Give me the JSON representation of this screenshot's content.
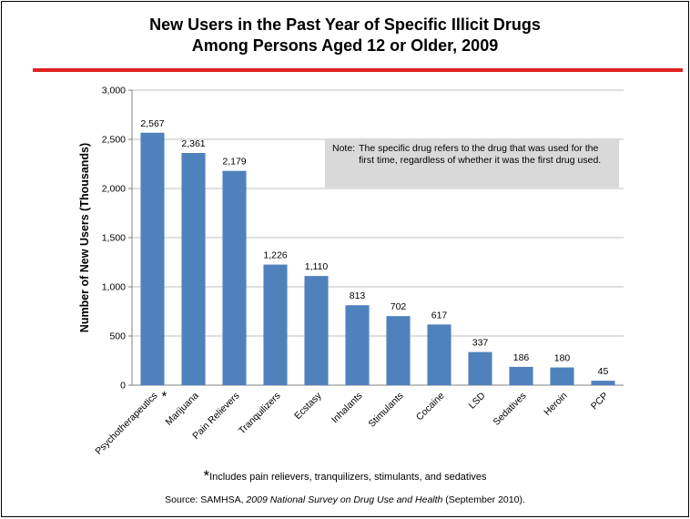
{
  "title": {
    "line1": "New Users in the Past Year of Specific Illicit Drugs",
    "line2": "Among Persons Aged 12 or Older, 2009"
  },
  "note": {
    "label": "Note:",
    "text": "The specific drug refers to the drug that was used for the first time, regardless of whether it was the first drug used."
  },
  "footnote": {
    "star": "*",
    "text": "Includes pain relievers, tranquilizers, stimulants, and sedatives"
  },
  "source": {
    "prefix": "Source:  SAMHSA, ",
    "title": "2009 National Survey on Drug Use and Health",
    "suffix": " (September 2010)."
  },
  "colors": {
    "bar": "#4f81bd",
    "rule": "#e02020",
    "grid": "#bfbfbf",
    "note_bg": "#d9d9d9"
  },
  "chart_data": {
    "type": "bar",
    "title": "New Users in the Past Year of Specific Illicit Drugs Among Persons Aged 12 or Older, 2009",
    "xlabel": "",
    "ylabel": "Number of New Users (Thousands)",
    "ylim": [
      0,
      3000
    ],
    "yticks": [
      0,
      500,
      1000,
      1500,
      2000,
      2500,
      3000
    ],
    "ytick_labels": [
      "0",
      "500",
      "1,000",
      "1,500",
      "2,000",
      "2,500",
      "3,000"
    ],
    "grid": true,
    "categories": [
      "Psychotherapeutics",
      "Marijuana",
      "Pain Relievers",
      "Tranquilizers",
      "Ecstasy",
      "Inhalants",
      "Stimulants",
      "Cocaine",
      "LSD",
      "Sedatives",
      "Heroin",
      "PCP"
    ],
    "category_markers": [
      "*",
      "",
      "",
      "",
      "",
      "",
      "",
      "",
      "",
      "",
      "",
      ""
    ],
    "values": [
      2567,
      2361,
      2179,
      1226,
      1110,
      813,
      702,
      617,
      337,
      186,
      180,
      45
    ],
    "value_labels": [
      "2,567",
      "2,361",
      "2,179",
      "1,226",
      "1,110",
      "813",
      "702",
      "617",
      "337",
      "186",
      "180",
      "45"
    ]
  }
}
